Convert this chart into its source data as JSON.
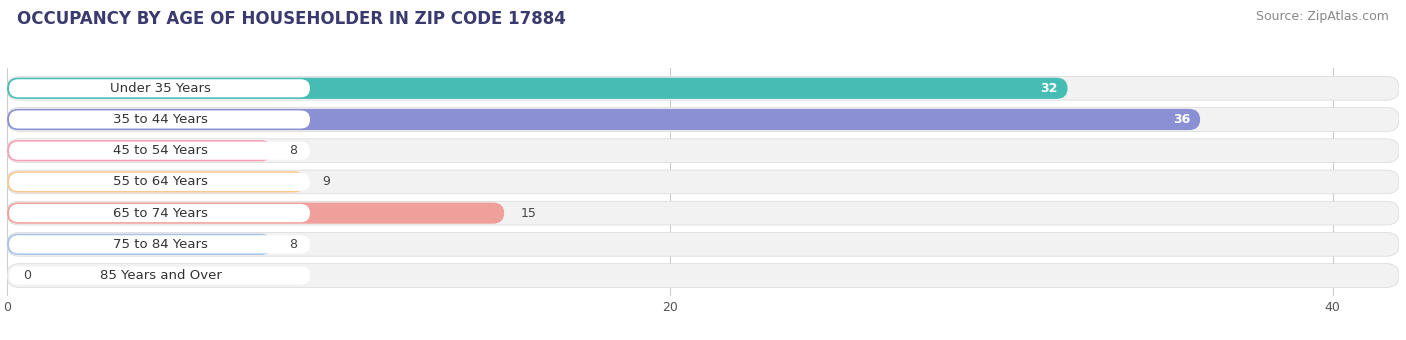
{
  "title": "OCCUPANCY BY AGE OF HOUSEHOLDER IN ZIP CODE 17884",
  "source": "Source: ZipAtlas.com",
  "categories": [
    "Under 35 Years",
    "35 to 44 Years",
    "45 to 54 Years",
    "55 to 64 Years",
    "65 to 74 Years",
    "75 to 84 Years",
    "85 Years and Over"
  ],
  "values": [
    32,
    36,
    8,
    9,
    15,
    8,
    0
  ],
  "bar_colors": [
    "#45bdb5",
    "#8b8fd4",
    "#f4a0b5",
    "#f9c890",
    "#f0a09a",
    "#a8c4e8",
    "#d4b8e8"
  ],
  "xlim_max": 42,
  "xticks": [
    0,
    20,
    40
  ],
  "background_color": "#ffffff",
  "row_bg_color": "#f0f0f0",
  "title_fontsize": 12,
  "source_fontsize": 9,
  "label_fontsize": 9.5,
  "value_fontsize": 9
}
